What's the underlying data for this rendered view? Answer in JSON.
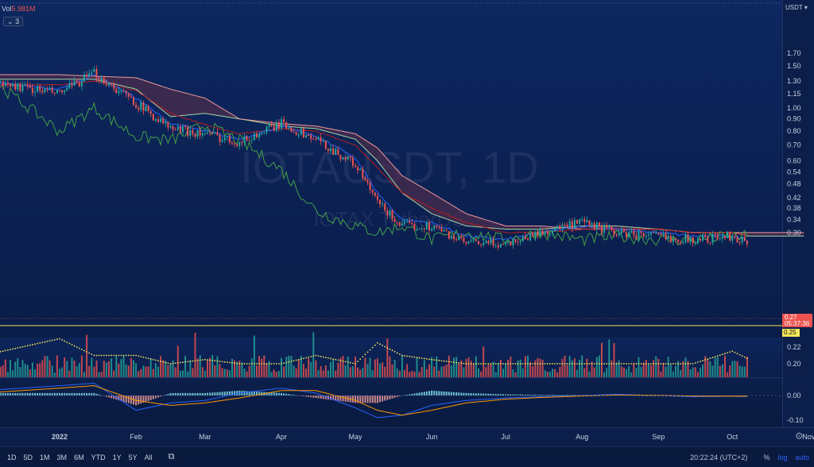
{
  "legend": {
    "vol_prefix": "Vol",
    "vol_value": "5.981M",
    "indicator_count": "3"
  },
  "watermark": {
    "symbol": "IOTAUSDT, 1D",
    "description": "IOTAX TetherUS"
  },
  "currency_button": "USDT ▾",
  "price_tags": {
    "last": "0.27",
    "countdown": "05:37:36",
    "line": "0.25"
  },
  "toolbar": {
    "timeframes": [
      "1D",
      "5D",
      "1M",
      "3M",
      "6M",
      "YTD",
      "1Y",
      "5Y",
      "All"
    ],
    "compare_icon": "calendar-range-icon",
    "clock": "20:22:24 (UTC+2)",
    "percent_label": "%",
    "log_label": "log",
    "auto_label": "auto"
  },
  "settings_icon": "gear-icon",
  "colors": {
    "background": "#0b1f4a",
    "up": "#26a69a",
    "down": "#ef5350",
    "tenkan": "#2962ff",
    "kijun": "#b71c1c",
    "chikou": "#43a047",
    "span_a": "#a5d6a7",
    "span_b": "#ef9a9a",
    "cloud_bear": "#4a2c4e",
    "accent_blue": "#2962ff"
  },
  "chart_data": {
    "type": "line",
    "title": "IOTAUSDT, 1D",
    "subtitle": "IOTAX TetherUS",
    "scale": "log",
    "grid": false,
    "x_ticks": [
      "2022",
      "Feb",
      "Mar",
      "Apr",
      "May",
      "Jun",
      "Jul",
      "Aug",
      "Sep",
      "Oct",
      "Nov"
    ],
    "price_ticks": [
      "1.70",
      "1.50",
      "1.30",
      "1.15",
      "1.00",
      "0.90",
      "0.80",
      "0.70",
      "0.60",
      "0.54",
      "0.48",
      "0.42",
      "0.38",
      "0.34",
      "0.30",
      "0.22",
      "0.20"
    ],
    "volume_ticks": [
      "0.22",
      "0.20"
    ],
    "macd_ticks": [
      "0.00",
      "-0.10"
    ],
    "x": [
      "2021-12-01",
      "2022-01-01",
      "2022-01-15",
      "2022-02-01",
      "2022-02-15",
      "2022-03-01",
      "2022-03-15",
      "2022-04-01",
      "2022-04-15",
      "2022-05-01",
      "2022-05-10",
      "2022-05-20",
      "2022-06-01",
      "2022-06-15",
      "2022-07-01",
      "2022-07-15",
      "2022-08-01",
      "2022-08-15",
      "2022-09-01",
      "2022-09-15",
      "2022-10-01",
      "2022-10-08"
    ],
    "series": [
      {
        "name": "Close",
        "values": [
          1.3,
          1.15,
          1.4,
          1.05,
          0.82,
          0.78,
          0.72,
          0.86,
          0.74,
          0.58,
          0.4,
          0.32,
          0.32,
          0.27,
          0.27,
          0.3,
          0.33,
          0.3,
          0.29,
          0.28,
          0.29,
          0.27
        ]
      },
      {
        "name": "Tenkan",
        "values": [
          1.28,
          1.2,
          1.38,
          1.1,
          0.86,
          0.8,
          0.74,
          0.84,
          0.76,
          0.62,
          0.44,
          0.34,
          0.33,
          0.29,
          0.28,
          0.3,
          0.32,
          0.31,
          0.3,
          0.29,
          0.29,
          0.28
        ]
      },
      {
        "name": "Kijun",
        "values": [
          1.25,
          1.25,
          1.3,
          1.18,
          0.95,
          0.85,
          0.78,
          0.82,
          0.8,
          0.7,
          0.56,
          0.44,
          0.38,
          0.33,
          0.3,
          0.3,
          0.31,
          0.31,
          0.31,
          0.3,
          0.3,
          0.29
        ]
      },
      {
        "name": "Chikou",
        "values": [
          1.4,
          0.8,
          1.0,
          0.76,
          0.73,
          0.85,
          0.73,
          0.55,
          0.37,
          0.32,
          0.3,
          0.32,
          0.28,
          0.3,
          0.28,
          0.3,
          0.28,
          0.29,
          0.28,
          0.28,
          0.29,
          0.29
        ]
      },
      {
        "name": "Span A",
        "values": [
          1.32,
          1.32,
          1.32,
          1.2,
          0.92,
          0.95,
          0.9,
          0.84,
          0.82,
          0.74,
          0.6,
          0.44,
          0.36,
          0.32,
          0.31,
          0.31,
          0.32,
          0.32,
          0.31,
          0.3,
          0.3,
          0.29
        ]
      },
      {
        "name": "Span B",
        "values": [
          1.38,
          1.38,
          1.36,
          1.34,
          1.2,
          1.1,
          0.9,
          0.86,
          0.84,
          0.78,
          0.68,
          0.52,
          0.44,
          0.36,
          0.32,
          0.32,
          0.31,
          0.31,
          0.31,
          0.3,
          0.3,
          0.3
        ]
      }
    ],
    "volume": [
      0.21,
      0.23,
      0.21,
      0.21,
      0.2,
      0.205,
      0.2,
      0.2,
      0.21,
      0.2,
      0.225,
      0.21,
      0.205,
      0.2,
      0.2,
      0.2,
      0.2,
      0.2,
      0.2,
      0.2,
      0.215,
      0.205
    ],
    "macd": {
      "macd": [
        0.02,
        0.04,
        0.05,
        -0.06,
        -0.03,
        -0.02,
        0.01,
        0.03,
        0.01,
        -0.05,
        -0.09,
        -0.08,
        -0.04,
        -0.02,
        -0.01,
        -0.005,
        0.0,
        0.005,
        0.0,
        -0.005,
        -0.003,
        -0.004
      ],
      "signal": [
        0.01,
        0.03,
        0.04,
        -0.02,
        -0.04,
        -0.03,
        -0.01,
        0.02,
        0.02,
        -0.02,
        -0.06,
        -0.08,
        -0.06,
        -0.03,
        -0.015,
        -0.008,
        -0.002,
        0.002,
        0.001,
        -0.002,
        -0.003,
        -0.003
      ]
    },
    "last_price": 0.27,
    "horizontal_line": 0.25
  }
}
